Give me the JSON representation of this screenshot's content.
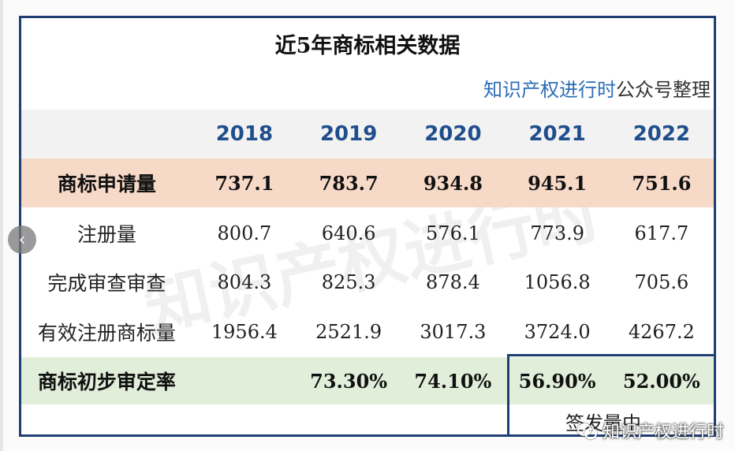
{
  "title": "近5年商标相关数据",
  "source": {
    "name": "知识产权进行时",
    "suffix": "公众号整理"
  },
  "years": [
    "2018",
    "2019",
    "2020",
    "2021",
    "2022"
  ],
  "rows": [
    {
      "label": "商标申请量",
      "values": [
        "737.1",
        "783.7",
        "934.8",
        "945.1",
        "751.6"
      ]
    },
    {
      "label": "注册量",
      "values": [
        "800.7",
        "640.6",
        "576.1",
        "773.9",
        "617.7"
      ]
    },
    {
      "label": "完成审查审查",
      "values": [
        "804.3",
        "825.3",
        "878.4",
        "1056.8",
        "705.6"
      ]
    },
    {
      "label": "有效注册商标量",
      "values": [
        "1956.4",
        "2521.9",
        "3017.3",
        "3724.0",
        "4267.2"
      ]
    },
    {
      "label": "商标初步审定率",
      "values": [
        "",
        "73.30%",
        "74.10%",
        "56.90%",
        "52.00%"
      ]
    }
  ],
  "note": "签发量中",
  "watermark": "知识产权进行时",
  "badge": "知识产权进行时",
  "nav": {
    "prev_glyph": "‹"
  },
  "colors": {
    "frame": "#1f3f74",
    "year_text": "#1f4e8c",
    "apply_bg": "#f7d9c8",
    "rate_bg": "#e1efda"
  }
}
